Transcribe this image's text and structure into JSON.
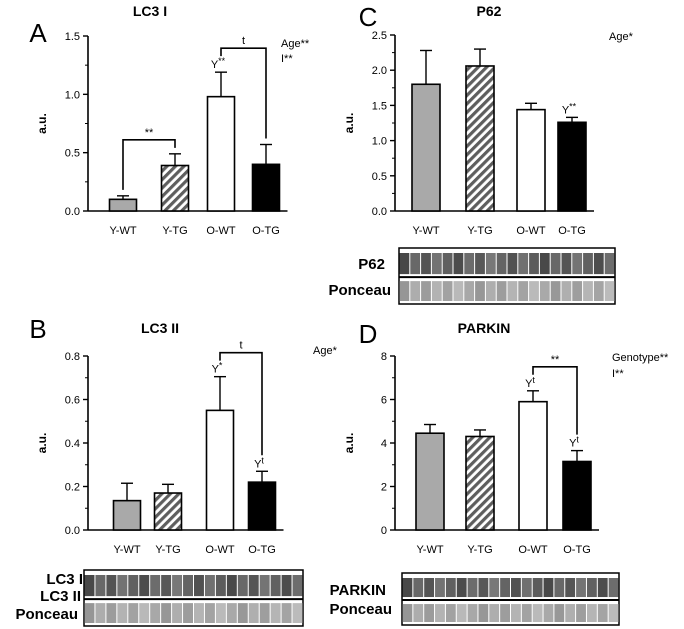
{
  "chart_data": [
    {
      "panel": "A",
      "type": "bar",
      "title": "LC3 I",
      "ylabel": "a.u.",
      "xlabel": "",
      "categories": [
        "Y-WT",
        "Y-TG",
        "O-WT",
        "O-TG"
      ],
      "values": [
        0.1,
        0.39,
        0.98,
        0.4
      ],
      "errors": [
        0.03,
        0.1,
        0.21,
        0.17
      ],
      "fills": [
        "gray",
        "hatched",
        "white",
        "black"
      ],
      "ylim": [
        0,
        1.5
      ],
      "yticks": [
        0.0,
        0.5,
        1.0,
        1.5
      ],
      "tick_decimals": 1,
      "stats": [
        "Age**",
        "I**"
      ],
      "brackets": [
        {
          "from": 0,
          "to": 1,
          "label": "**"
        },
        {
          "from": 2,
          "to": 3,
          "label": "t"
        }
      ],
      "bar_labels": [
        {
          "index": 2,
          "text": "Y",
          "sup": "**"
        }
      ],
      "blots": []
    },
    {
      "panel": "B",
      "type": "bar",
      "title": "LC3 II",
      "ylabel": "a.u.",
      "xlabel": "",
      "categories": [
        "Y-WT",
        "Y-TG",
        "O-WT",
        "O-TG"
      ],
      "values": [
        0.135,
        0.17,
        0.55,
        0.22
      ],
      "errors": [
        0.08,
        0.04,
        0.155,
        0.05
      ],
      "fills": [
        "gray",
        "hatched",
        "white",
        "black"
      ],
      "ylim": [
        0,
        0.8
      ],
      "yticks": [
        0.0,
        0.2,
        0.4,
        0.6,
        0.8
      ],
      "tick_decimals": 1,
      "stats": [
        "Age*"
      ],
      "brackets": [
        {
          "from": 2,
          "to": 3,
          "label": "t"
        }
      ],
      "bar_labels": [
        {
          "index": 2,
          "text": "Y",
          "sup": "*"
        },
        {
          "index": 3,
          "text": "Y",
          "sup": "t"
        }
      ],
      "blots": [
        "LC3 I",
        "LC3 II",
        "Ponceau"
      ]
    },
    {
      "panel": "C",
      "type": "bar",
      "title": "P62",
      "ylabel": "a.u.",
      "xlabel": "",
      "categories": [
        "Y-WT",
        "Y-TG",
        "O-WT",
        "O-TG"
      ],
      "values": [
        1.8,
        2.06,
        1.44,
        1.26
      ],
      "errors": [
        0.48,
        0.24,
        0.09,
        0.07
      ],
      "fills": [
        "gray",
        "hatched",
        "white",
        "black"
      ],
      "ylim": [
        0,
        2.5
      ],
      "yticks": [
        0.0,
        0.5,
        1.0,
        1.5,
        2.0,
        2.5
      ],
      "tick_decimals": 1,
      "stats": [
        "Age*"
      ],
      "brackets": [],
      "bar_labels": [
        {
          "index": 3,
          "text": "Y",
          "sup": "**"
        }
      ],
      "blots": [
        "P62",
        "Ponceau"
      ]
    },
    {
      "panel": "D",
      "type": "bar",
      "title": "PARKIN",
      "ylabel": "a.u.",
      "xlabel": "",
      "categories": [
        "Y-WT",
        "Y-TG",
        "O-WT",
        "O-TG"
      ],
      "values": [
        4.45,
        4.3,
        5.9,
        3.15
      ],
      "errors": [
        0.4,
        0.3,
        0.5,
        0.5
      ],
      "fills": [
        "gray",
        "hatched",
        "white",
        "black"
      ],
      "ylim": [
        0,
        8
      ],
      "yticks": [
        0,
        2,
        4,
        6,
        8
      ],
      "tick_decimals": 0,
      "stats": [
        "Genotype**",
        "I**"
      ],
      "brackets": [
        {
          "from": 2,
          "to": 3,
          "label": "**"
        }
      ],
      "bar_labels": [
        {
          "index": 2,
          "text": "Y",
          "sup": "t"
        },
        {
          "index": 3,
          "text": "Y",
          "sup": "t"
        }
      ],
      "blots": [
        "PARKIN",
        "Ponceau"
      ]
    }
  ],
  "colors": {
    "gray": "#a9a9a9",
    "hatched": "#5e5e5e",
    "white": "#ffffff",
    "black": "#000000"
  }
}
